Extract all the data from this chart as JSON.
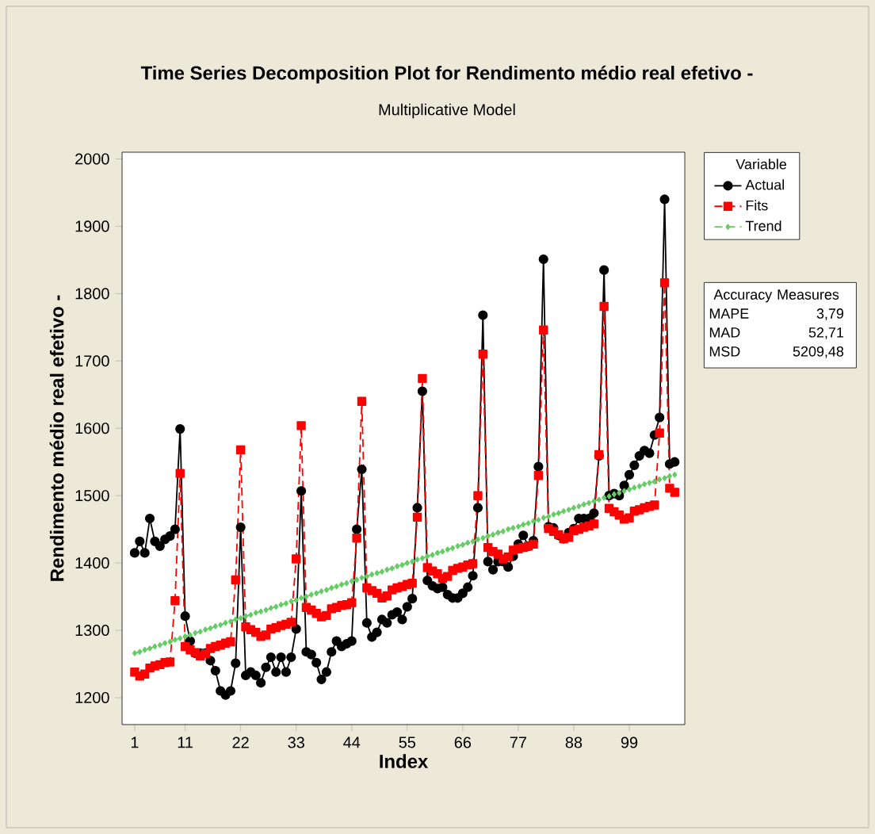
{
  "chart_data": {
    "type": "line",
    "title": "Time Series Decomposition Plot for Rendimento médio real efetivo -",
    "subtitle": "Multiplicative Model",
    "xlabel": "Index",
    "ylabel": "Rendimento médio real efetivo -",
    "legend_title": "Variable",
    "legend": "right",
    "annotations": [
      "Accuracy Measures",
      "MAPE",
      "3,79",
      "MAD",
      "52,71",
      "MSD",
      "5209,48"
    ],
    "xlim": [
      -1.5,
      110
    ],
    "ylim": [
      1160,
      2010
    ],
    "xticks": [
      1,
      11,
      22,
      33,
      44,
      55,
      66,
      77,
      88,
      99
    ],
    "yticks": [
      1200,
      1300,
      1400,
      1500,
      1600,
      1700,
      1800,
      1900,
      2000
    ],
    "x": [
      1,
      2,
      3,
      4,
      5,
      6,
      7,
      8,
      9,
      10,
      11,
      12,
      13,
      14,
      15,
      16,
      17,
      18,
      19,
      20,
      21,
      22,
      23,
      24,
      25,
      26,
      27,
      28,
      29,
      30,
      31,
      32,
      33,
      34,
      35,
      36,
      37,
      38,
      39,
      40,
      41,
      42,
      43,
      44,
      45,
      46,
      47,
      48,
      49,
      50,
      51,
      52,
      53,
      54,
      55,
      56,
      57,
      58,
      59,
      60,
      61,
      62,
      63,
      64,
      65,
      66,
      67,
      68,
      69,
      70,
      71,
      72,
      73,
      74,
      75,
      76,
      77,
      78,
      79,
      80,
      81,
      82,
      83,
      84,
      85,
      86,
      87,
      88,
      89,
      90,
      91,
      92,
      93,
      94,
      95,
      96,
      97,
      98,
      99,
      100,
      101,
      102,
      103,
      104,
      105,
      106,
      107,
      108
    ],
    "series": [
      {
        "name": "Actual",
        "color": "#000000",
        "marker": "circle",
        "line_style": "solid",
        "values": [
          1415,
          1432,
          1415,
          1466,
          1432,
          1425,
          1435,
          1440,
          1450,
          1599,
          1321,
          1284,
          1266,
          1266,
          1266,
          1255,
          1240,
          1210,
          1204,
          1210,
          1251,
          1453,
          1233,
          1238,
          1233,
          1222,
          1245,
          1260,
          1238,
          1260,
          1238,
          1260,
          1302,
          1507,
          1268,
          1264,
          1252,
          1227,
          1238,
          1268,
          1284,
          1276,
          1280,
          1284,
          1450,
          1539,
          1311,
          1290,
          1297,
          1316,
          1311,
          1323,
          1327,
          1316,
          1335,
          1347,
          1482,
          1655,
          1374,
          1366,
          1362,
          1364,
          1353,
          1348,
          1348,
          1355,
          1364,
          1381,
          1482,
          1768,
          1402,
          1390,
          1402,
          1402,
          1394,
          1410,
          1428,
          1441,
          1425,
          1433,
          1543,
          1851,
          1454,
          1452,
          1441,
          1436,
          1445,
          1451,
          1466,
          1466,
          1466,
          1474,
          1559,
          1835,
          1500,
          1503,
          1500,
          1515,
          1531,
          1545,
          1559,
          1567,
          1563,
          1590,
          1616,
          1940,
          1547,
          1550
        ]
      },
      {
        "name": "Fits",
        "color": "#ff0000",
        "marker": "square",
        "line_style": "dashed",
        "values": [
          1238,
          1232,
          1235,
          1244,
          1247,
          1249,
          1252,
          1253,
          1344,
          1533,
          1276,
          1271,
          1267,
          1262,
          1265,
          1273,
          1276,
          1278,
          1281,
          1283,
          1375,
          1568,
          1305,
          1301,
          1297,
          1291,
          1293,
          1302,
          1304,
          1307,
          1309,
          1312,
          1406,
          1604,
          1334,
          1330,
          1325,
          1320,
          1322,
          1332,
          1334,
          1337,
          1338,
          1341,
          1437,
          1640,
          1363,
          1359,
          1355,
          1348,
          1351,
          1360,
          1363,
          1365,
          1368,
          1370,
          1468,
          1674,
          1393,
          1388,
          1384,
          1377,
          1380,
          1389,
          1392,
          1394,
          1397,
          1399,
          1500,
          1710,
          1423,
          1417,
          1413,
          1406,
          1409,
          1419,
          1421,
          1423,
          1425,
          1428,
          1530,
          1746,
          1451,
          1447,
          1442,
          1436,
          1438,
          1448,
          1450,
          1453,
          1455,
          1458,
          1561,
          1781,
          1481,
          1476,
          1471,
          1465,
          1467,
          1477,
          1479,
          1482,
          1484,
          1486,
          1593,
          1816,
          1511,
          1505
        ]
      },
      {
        "name": "Trend",
        "color": "#66cc66",
        "marker": "diamond",
        "line_style": "dashed",
        "values": [
          1266,
          1268,
          1271,
          1273,
          1276,
          1278,
          1281,
          1283,
          1286,
          1288,
          1291,
          1293,
          1296,
          1298,
          1301,
          1303,
          1306,
          1308,
          1311,
          1313,
          1316,
          1318,
          1321,
          1323,
          1326,
          1328,
          1330,
          1333,
          1335,
          1338,
          1340,
          1343,
          1345,
          1348,
          1350,
          1353,
          1355,
          1358,
          1360,
          1363,
          1365,
          1368,
          1370,
          1373,
          1375,
          1378,
          1380,
          1383,
          1385,
          1387,
          1390,
          1392,
          1395,
          1397,
          1400,
          1402,
          1405,
          1407,
          1410,
          1412,
          1415,
          1417,
          1420,
          1422,
          1425,
          1427,
          1430,
          1432,
          1435,
          1437,
          1440,
          1442,
          1445,
          1447,
          1450,
          1452,
          1454,
          1457,
          1459,
          1462,
          1464,
          1467,
          1469,
          1472,
          1474,
          1477,
          1479,
          1482,
          1484,
          1487,
          1489,
          1492,
          1494,
          1497,
          1499,
          1502,
          1504,
          1507,
          1509,
          1512,
          1514,
          1517,
          1519,
          1521,
          1524,
          1526,
          1529,
          1531
        ]
      }
    ]
  }
}
